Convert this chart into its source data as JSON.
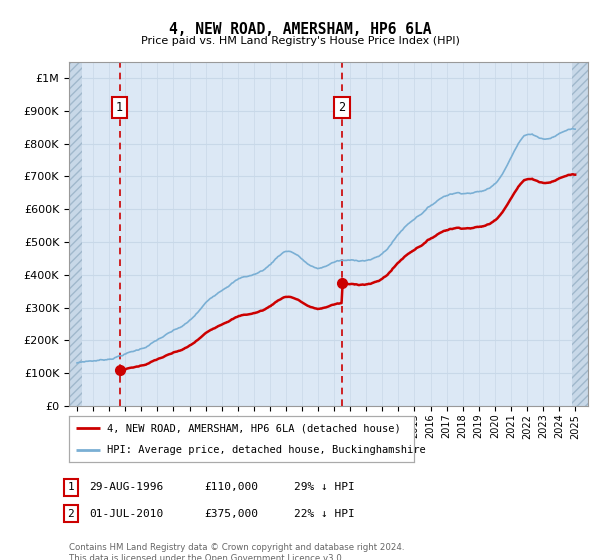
{
  "title": "4, NEW ROAD, AMERSHAM, HP6 6LA",
  "subtitle": "Price paid vs. HM Land Registry's House Price Index (HPI)",
  "ylabel_ticks": [
    "£0",
    "£100K",
    "£200K",
    "£300K",
    "£400K",
    "£500K",
    "£600K",
    "£700K",
    "£800K",
    "£900K",
    "£1M"
  ],
  "ytick_values": [
    0,
    100000,
    200000,
    300000,
    400000,
    500000,
    600000,
    700000,
    800000,
    900000,
    1000000
  ],
  "ylim": [
    0,
    1050000
  ],
  "xlim_start": 1993.5,
  "xlim_end": 2025.8,
  "sale1_x": 1996.65,
  "sale1_y": 110000,
  "sale1_label": "1",
  "sale2_x": 2010.5,
  "sale2_y": 375000,
  "sale2_label": "2",
  "legend_line1": "4, NEW ROAD, AMERSHAM, HP6 6LA (detached house)",
  "legend_line2": "HPI: Average price, detached house, Buckinghamshire",
  "sale_color": "#cc0000",
  "hpi_color": "#7aafd4",
  "grid_color": "#c8d8e8",
  "vline_color": "#cc0000",
  "bg_color": "#dce8f5",
  "footer": "Contains HM Land Registry data © Crown copyright and database right 2024.\nThis data is licensed under the Open Government Licence v3.0."
}
